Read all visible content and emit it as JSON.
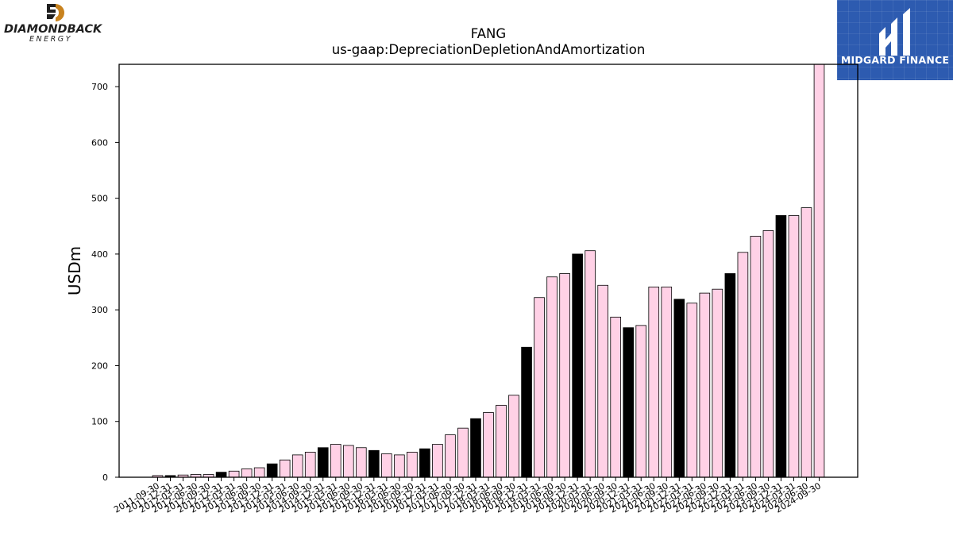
{
  "logo": {
    "company_line1": "DIAMONDBACK",
    "company_line2": "ENERGY",
    "brand_color": "#c8821e"
  },
  "badge": {
    "text": "MIDGARD FINANCE",
    "background": "#2d5bb0"
  },
  "chart_data": {
    "type": "bar",
    "title": "FANG",
    "subtitle": "us-gaap:DepreciationDepletionAndAmortization",
    "xlabel": "",
    "ylabel": "USDm",
    "ylim": [
      0,
      740
    ],
    "yticks": [
      0,
      100,
      200,
      300,
      400,
      500,
      600,
      700
    ],
    "grid": false,
    "colors": {
      "quarter": "#ffd1e6",
      "annual": "#000000",
      "edge": "#000000"
    },
    "categories": [
      "2011-09-30",
      "2011-12-31",
      "2012-03-31",
      "2012-06-30",
      "2012-09-30",
      "2012-12-31",
      "2013-03-31",
      "2013-06-30",
      "2013-09-30",
      "2013-12-31",
      "2014-03-31",
      "2014-06-30",
      "2014-09-30",
      "2014-12-31",
      "2015-03-31",
      "2015-06-30",
      "2015-09-30",
      "2015-12-31",
      "2016-03-31",
      "2016-06-30",
      "2016-09-30",
      "2016-12-31",
      "2017-03-31",
      "2017-06-30",
      "2017-09-30",
      "2017-12-31",
      "2018-03-31",
      "2018-06-30",
      "2018-09-30",
      "2018-12-31",
      "2019-03-31",
      "2019-06-30",
      "2019-09-30",
      "2019-12-31",
      "2020-03-31",
      "2020-06-30",
      "2020-09-30",
      "2020-12-31",
      "2021-03-31",
      "2021-06-30",
      "2021-09-30",
      "2021-12-31",
      "2022-03-31",
      "2022-06-30",
      "2022-09-30",
      "2022-12-31",
      "2023-03-31",
      "2023-06-30",
      "2023-09-30",
      "2023-12-31",
      "2024-03-31",
      "2024-06-30",
      "2024-09-30"
    ],
    "values": [
      3,
      3,
      4,
      5,
      5,
      9,
      11,
      15,
      17,
      24,
      31,
      40,
      45,
      53,
      59,
      57,
      53,
      48,
      42,
      40,
      45,
      51,
      59,
      76,
      88,
      105,
      116,
      129,
      147,
      233,
      322,
      359,
      365,
      400,
      406,
      344,
      287,
      268,
      272,
      341,
      341,
      319,
      312,
      330,
      337,
      365,
      403,
      432,
      442,
      469,
      469,
      483,
      740
    ],
    "annual_flags": [
      false,
      true,
      false,
      false,
      false,
      true,
      false,
      false,
      false,
      true,
      false,
      false,
      false,
      true,
      false,
      false,
      false,
      true,
      false,
      false,
      false,
      true,
      false,
      false,
      false,
      true,
      false,
      false,
      false,
      true,
      false,
      false,
      false,
      true,
      false,
      false,
      false,
      true,
      false,
      false,
      false,
      true,
      false,
      false,
      false,
      true,
      false,
      false,
      false,
      true,
      false,
      false,
      false
    ]
  }
}
